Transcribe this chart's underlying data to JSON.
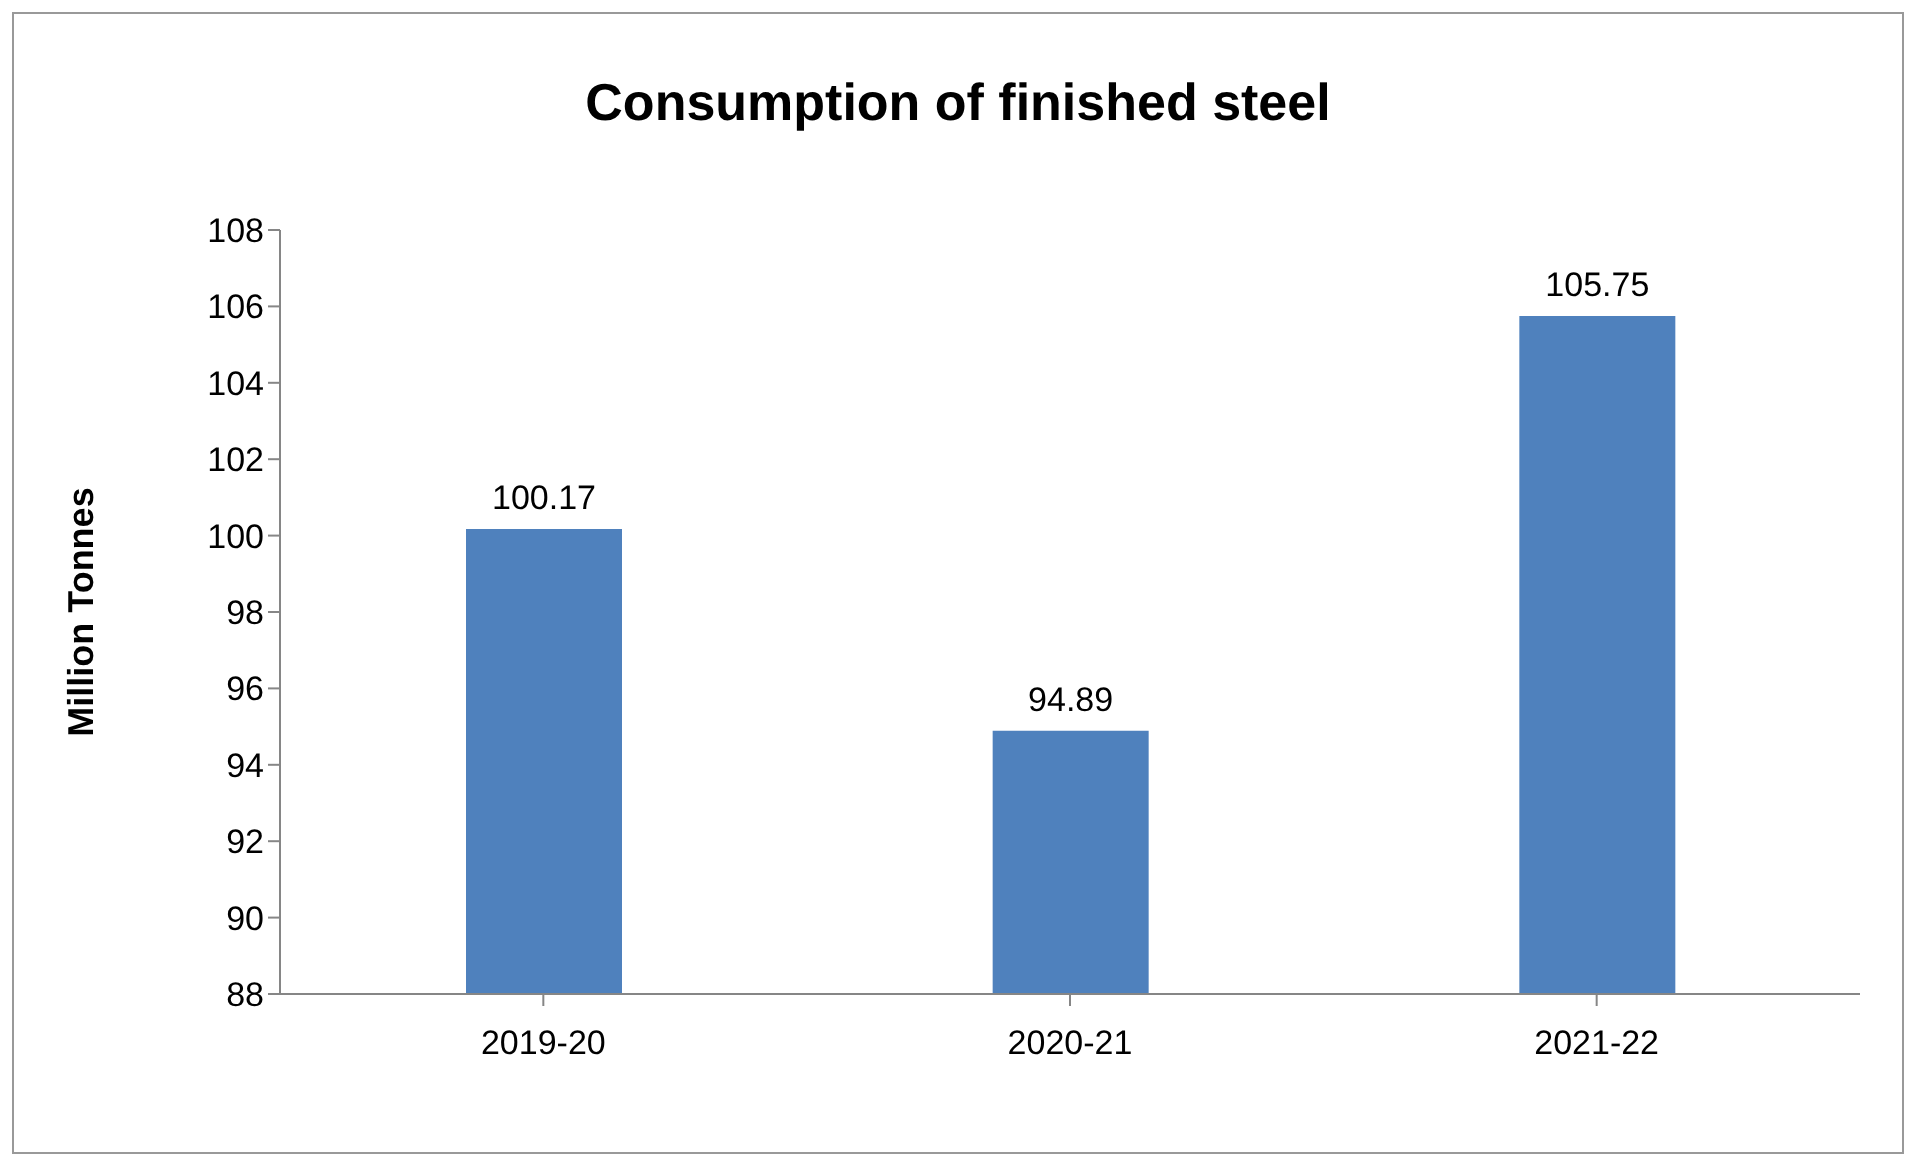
{
  "chart_data": {
    "type": "bar",
    "title": "Consumption of finished steel",
    "ylabel": "Million Tonnes",
    "categories": [
      "2019-20",
      "2020-21",
      "2021-22"
    ],
    "values": [
      100.17,
      94.89,
      105.75
    ],
    "color": "#4f81bd",
    "ylim": [
      88,
      108
    ],
    "yticks": [
      88,
      90,
      92,
      94,
      96,
      98,
      100,
      102,
      104,
      106,
      108
    ],
    "grid": false,
    "data_labels": true
  }
}
